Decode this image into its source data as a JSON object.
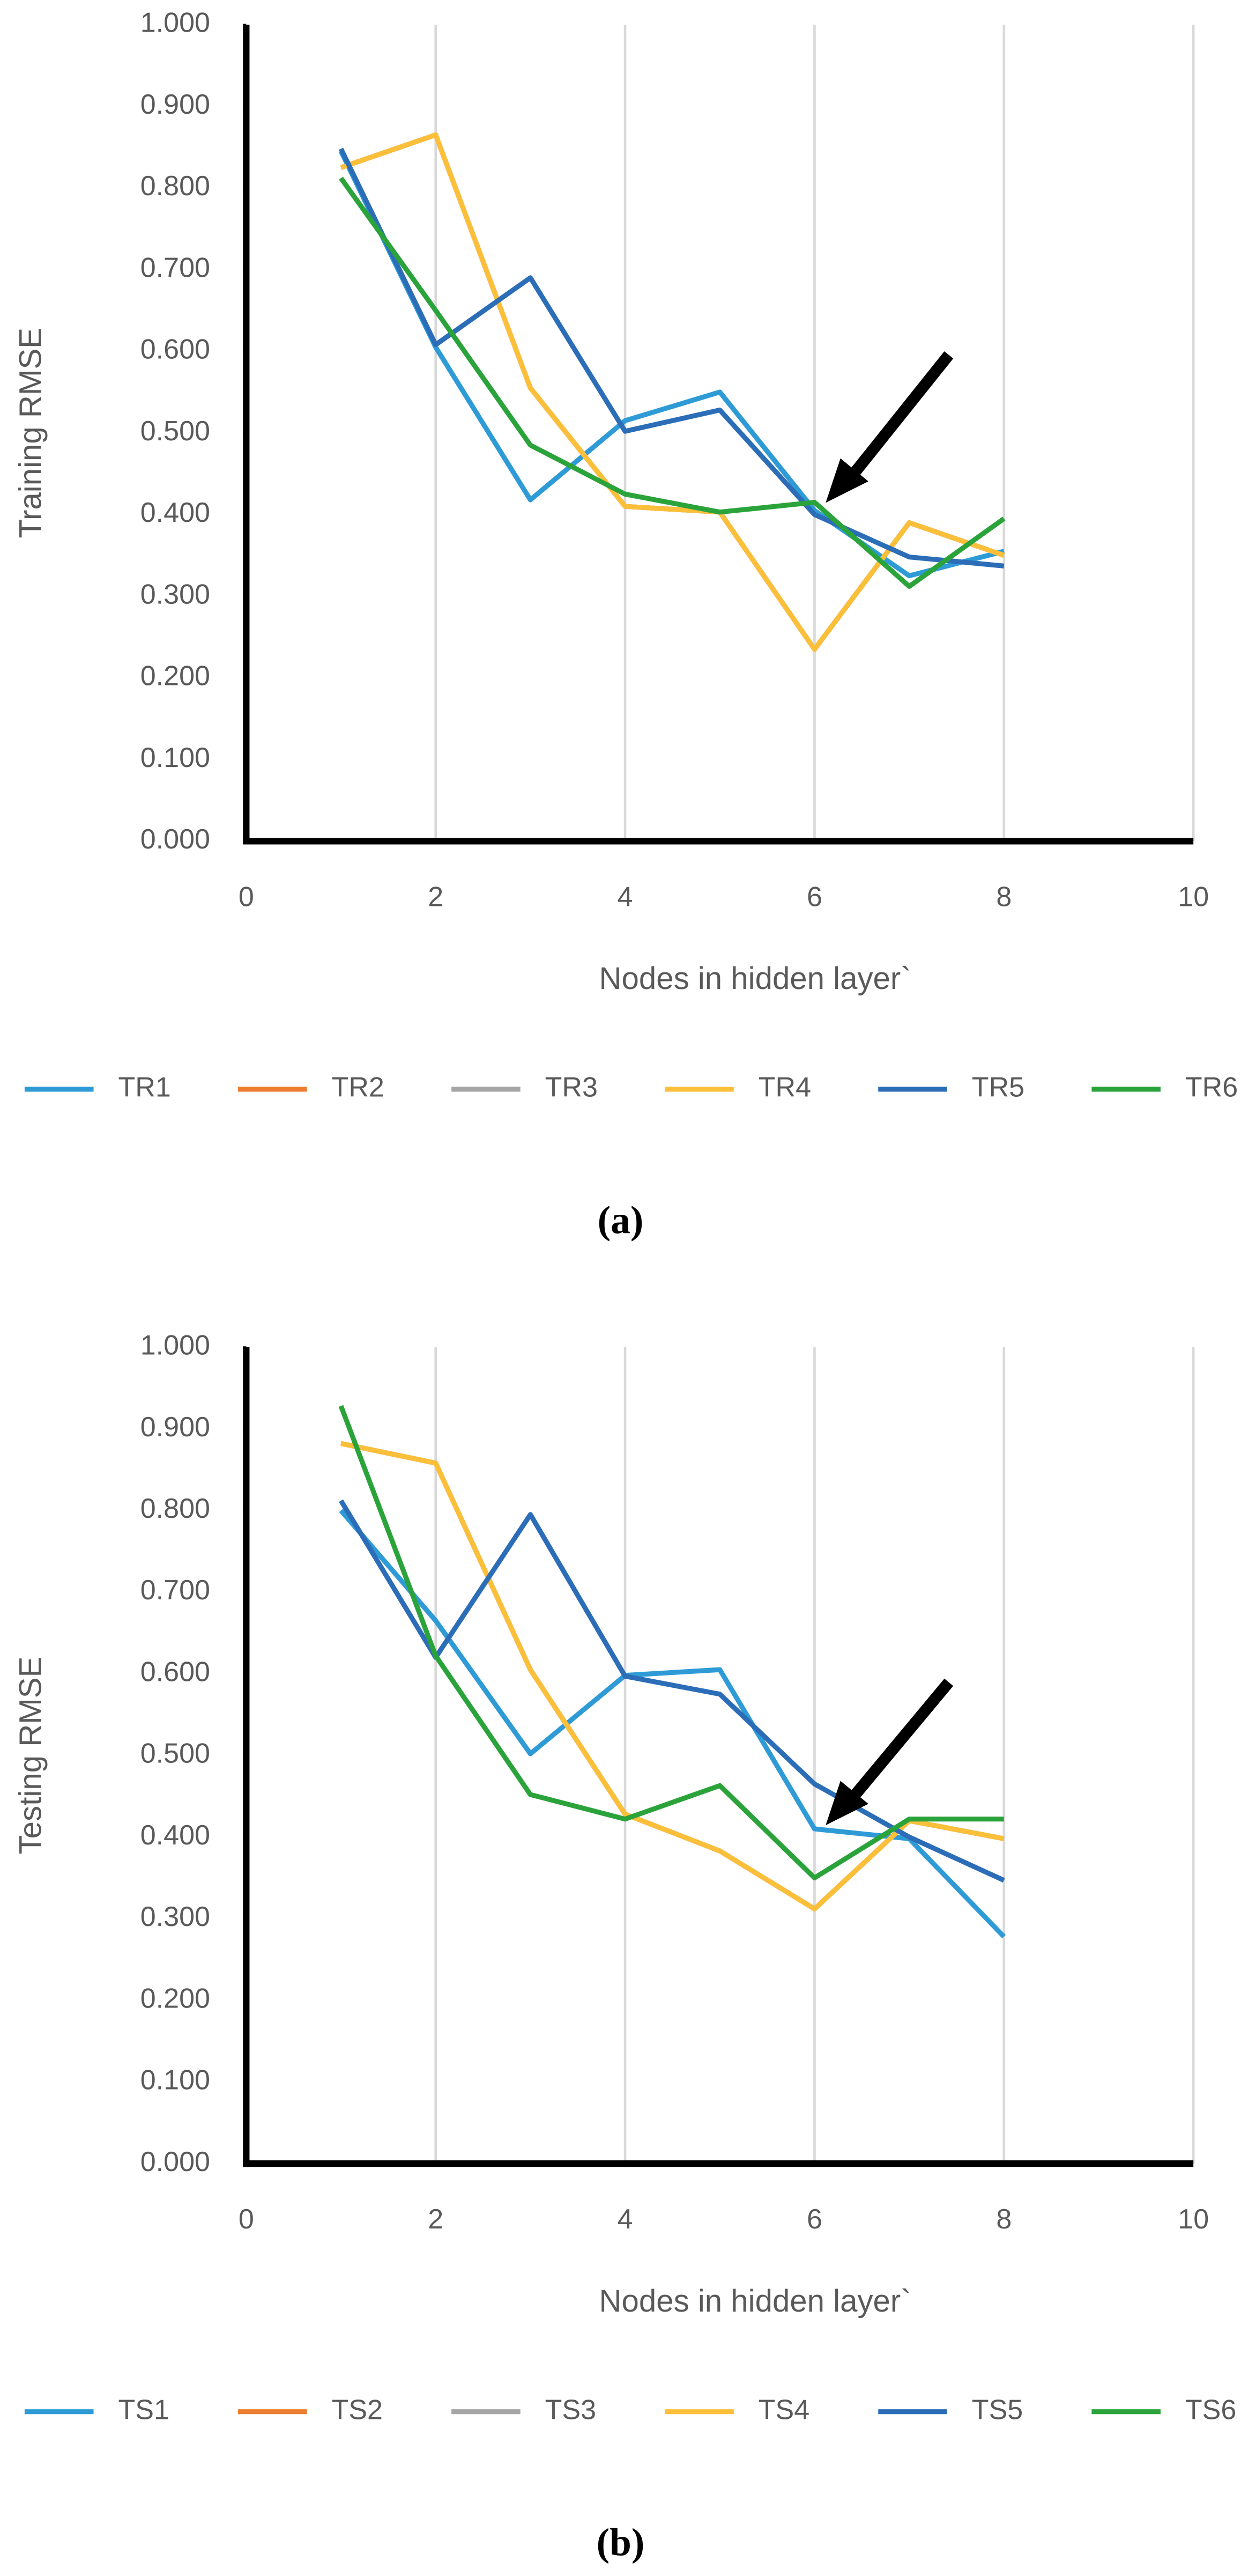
{
  "chart_data": [
    {
      "type": "line",
      "ylabel": "Training RMSE",
      "xlabel": "Nodes in hidden layer`",
      "caption": "(a)",
      "x": [
        1,
        2,
        3,
        4,
        5,
        6,
        7,
        8
      ],
      "xlim": [
        0,
        10
      ],
      "xticks": [
        0,
        2,
        4,
        6,
        8,
        10
      ],
      "ylim": [
        0,
        1
      ],
      "yticks": [
        {
          "value": 0,
          "label": "0.000"
        },
        {
          "value": 0.1,
          "label": "0.100"
        },
        {
          "value": 0.2,
          "label": "0.200"
        },
        {
          "value": 0.3,
          "label": "0.300"
        },
        {
          "value": 0.4,
          "label": "0.400"
        },
        {
          "value": 0.5,
          "label": "0.500"
        },
        {
          "value": 0.6,
          "label": "0.600"
        },
        {
          "value": 0.7,
          "label": "0.700"
        },
        {
          "value": 0.8,
          "label": "0.800"
        },
        {
          "value": 0.9,
          "label": "0.900"
        },
        {
          "value": 1,
          "label": "1.000"
        }
      ],
      "grid": "x",
      "legend": "bottom",
      "series": [
        {
          "name": "TR1",
          "color": "#2e9bd6",
          "values": [
            0.845,
            0.605,
            0.418,
            0.515,
            0.55,
            0.405,
            0.325,
            0.355
          ]
        },
        {
          "name": "TR2",
          "color": "#ed7d31",
          "values": [
            0.825,
            0.865,
            0.555,
            0.41,
            0.403,
            0.235,
            0.39,
            0.35
          ]
        },
        {
          "name": "TR3",
          "color": "#a5a5a5",
          "values": [
            0.825,
            0.865,
            0.555,
            0.41,
            0.403,
            0.235,
            0.39,
            0.35
          ]
        },
        {
          "name": "TR4",
          "color": "#fbbf3a",
          "values": [
            0.825,
            0.865,
            0.555,
            0.41,
            0.403,
            0.235,
            0.39,
            0.35
          ]
        },
        {
          "name": "TR5",
          "color": "#2c6db8",
          "values": [
            0.848,
            0.608,
            0.69,
            0.502,
            0.528,
            0.4,
            0.348,
            0.337
          ]
        },
        {
          "name": "TR6",
          "color": "#2ba33b",
          "values": [
            0.812,
            0.65,
            0.485,
            0.425,
            0.403,
            0.415,
            0.312,
            0.395
          ]
        }
      ]
    },
    {
      "type": "line",
      "ylabel": "Testing RMSE",
      "xlabel": "Nodes in hidden layer`",
      "caption": "(b)",
      "x": [
        1,
        2,
        3,
        4,
        5,
        6,
        7,
        8
      ],
      "xlim": [
        0,
        10
      ],
      "xticks": [
        0,
        2,
        4,
        6,
        8,
        10
      ],
      "ylim": [
        0,
        1
      ],
      "yticks": [
        {
          "value": 0,
          "label": "0.000"
        },
        {
          "value": 0.1,
          "label": "0.100"
        },
        {
          "value": 0.2,
          "label": "0.200"
        },
        {
          "value": 0.3,
          "label": "0.300"
        },
        {
          "value": 0.4,
          "label": "0.400"
        },
        {
          "value": 0.5,
          "label": "0.500"
        },
        {
          "value": 0.6,
          "label": "0.600"
        },
        {
          "value": 0.7,
          "label": "0.700"
        },
        {
          "value": 0.8,
          "label": "0.800"
        },
        {
          "value": 0.9,
          "label": "0.900"
        },
        {
          "value": 1,
          "label": "1.000"
        }
      ],
      "grid": "x",
      "legend": "bottom",
      "series": [
        {
          "name": "TS1",
          "color": "#2e9bd6",
          "values": [
            0.8,
            0.665,
            0.502,
            0.598,
            0.605,
            0.41,
            0.398,
            0.278
          ]
        },
        {
          "name": "TS2",
          "color": "#ed7d31",
          "values": [
            0.882,
            0.858,
            0.605,
            0.428,
            0.383,
            0.312,
            0.42,
            0.398
          ]
        },
        {
          "name": "TS3",
          "color": "#a5a5a5",
          "values": [
            0.882,
            0.858,
            0.605,
            0.428,
            0.383,
            0.312,
            0.42,
            0.398
          ]
        },
        {
          "name": "TS4",
          "color": "#fbbf3a",
          "values": [
            0.882,
            0.858,
            0.605,
            0.428,
            0.383,
            0.312,
            0.42,
            0.398
          ]
        },
        {
          "name": "TS5",
          "color": "#2c6db8",
          "values": [
            0.812,
            0.62,
            0.795,
            0.597,
            0.575,
            0.465,
            0.4,
            0.347
          ]
        },
        {
          "name": "TS6",
          "color": "#2ba33b",
          "values": [
            0.928,
            0.622,
            0.452,
            0.422,
            0.463,
            0.35,
            0.422,
            0.422
          ]
        }
      ]
    }
  ]
}
